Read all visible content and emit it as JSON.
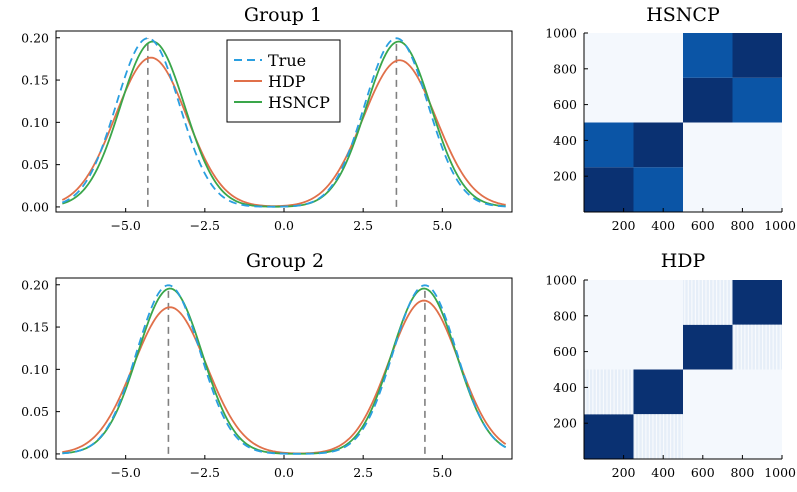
{
  "colors": {
    "true": "#2a9fe0",
    "hdp": "#e0704a",
    "hsncp": "#3aa64a",
    "vline": "#808080",
    "heat_low": "#f4f8fd",
    "heat_mid": "#0b55a6",
    "heat_high": "#0a3172"
  },
  "chart_data": [
    {
      "type": "line",
      "title": "Group 1",
      "xlim": [
        -7.2,
        7.2
      ],
      "ylim": [
        -0.006,
        0.208
      ],
      "xticks": [
        -5,
        -2.5,
        0,
        2.5,
        5
      ],
      "xtick_labels": [
        "−5.0",
        "−2.5",
        "0.0",
        "2.5",
        "5.0"
      ],
      "yticks": [
        0,
        0.05,
        0.1,
        0.15,
        0.2
      ],
      "ytick_labels": [
        "0.00",
        "0.05",
        "0.10",
        "0.15",
        "0.20"
      ],
      "vlines": [
        -4.3,
        3.55
      ],
      "legend": [
        "True",
        "HDP",
        "HSNCP"
      ],
      "legend_position": "top-center",
      "series": [
        {
          "name": "True",
          "style": "dashed",
          "components": [
            {
              "mu": -4.3,
              "sigma": 1.0,
              "w": 0.5
            },
            {
              "mu": 3.55,
              "sigma": 1.0,
              "w": 0.5
            }
          ]
        },
        {
          "name": "HDP",
          "style": "solid",
          "components": [
            {
              "mu": -4.2,
              "sigma": 1.13,
              "w": 0.5
            },
            {
              "mu": 3.65,
              "sigma": 1.15,
              "w": 0.5
            }
          ]
        },
        {
          "name": "HSNCP",
          "style": "solid",
          "components": [
            {
              "mu": -4.15,
              "sigma": 1.02,
              "w": 0.5
            },
            {
              "mu": 3.62,
              "sigma": 1.02,
              "w": 0.5
            }
          ]
        }
      ]
    },
    {
      "type": "line",
      "title": "Group 2",
      "xlim": [
        -7.2,
        7.2
      ],
      "ylim": [
        -0.006,
        0.208
      ],
      "xticks": [
        -5,
        -2.5,
        0,
        2.5,
        5
      ],
      "xtick_labels": [
        "−5.0",
        "−2.5",
        "0.0",
        "2.5",
        "5.0"
      ],
      "yticks": [
        0,
        0.05,
        0.1,
        0.15,
        0.2
      ],
      "ytick_labels": [
        "0.00",
        "0.05",
        "0.10",
        "0.15",
        "0.20"
      ],
      "vlines": [
        -3.65,
        4.45
      ],
      "series": [
        {
          "name": "True",
          "style": "dashed",
          "components": [
            {
              "mu": -3.65,
              "sigma": 1.0,
              "w": 0.5
            },
            {
              "mu": 4.45,
              "sigma": 1.0,
              "w": 0.5
            }
          ]
        },
        {
          "name": "HDP",
          "style": "solid",
          "components": [
            {
              "mu": -3.6,
              "sigma": 1.15,
              "w": 0.5
            },
            {
              "mu": 4.42,
              "sigma": 1.1,
              "w": 0.5
            }
          ]
        },
        {
          "name": "HSNCP",
          "style": "solid",
          "components": [
            {
              "mu": -3.6,
              "sigma": 1.02,
              "w": 0.5
            },
            {
              "mu": 4.42,
              "sigma": 1.02,
              "w": 0.5
            }
          ]
        }
      ]
    },
    {
      "type": "heatmap",
      "title": "HSNCP",
      "xlim": [
        0,
        1000
      ],
      "ylim": [
        0,
        1000
      ],
      "xticks": [
        200,
        400,
        600,
        800,
        1000
      ],
      "yticks": [
        200,
        400,
        600,
        800,
        1000
      ],
      "xtick_labels": [
        "200",
        "400",
        "600",
        "800",
        "1000"
      ],
      "ytick_labels": [
        "200",
        "400",
        "600",
        "800",
        "1000"
      ],
      "blocks": [
        {
          "x": [
            0,
            250
          ],
          "y": [
            0,
            250
          ],
          "level": "high"
        },
        {
          "x": [
            250,
            500
          ],
          "y": [
            0,
            250
          ],
          "level": "mid"
        },
        {
          "x": [
            0,
            250
          ],
          "y": [
            250,
            500
          ],
          "level": "mid"
        },
        {
          "x": [
            250,
            500
          ],
          "y": [
            250,
            500
          ],
          "level": "high"
        },
        {
          "x": [
            500,
            750
          ],
          "y": [
            500,
            750
          ],
          "level": "high"
        },
        {
          "x": [
            750,
            1000
          ],
          "y": [
            500,
            750
          ],
          "level": "mid"
        },
        {
          "x": [
            500,
            750
          ],
          "y": [
            750,
            1000
          ],
          "level": "mid"
        },
        {
          "x": [
            750,
            1000
          ],
          "y": [
            750,
            1000
          ],
          "level": "high"
        }
      ]
    },
    {
      "type": "heatmap",
      "title": "HDP",
      "xlim": [
        0,
        1000
      ],
      "ylim": [
        0,
        1000
      ],
      "xticks": [
        200,
        400,
        600,
        800,
        1000
      ],
      "yticks": [
        200,
        400,
        600,
        800,
        1000
      ],
      "xtick_labels": [
        "200",
        "400",
        "600",
        "800",
        "1000"
      ],
      "ytick_labels": [
        "200",
        "400",
        "600",
        "800",
        "1000"
      ],
      "blocks": [
        {
          "x": [
            0,
            250
          ],
          "y": [
            0,
            250
          ],
          "level": "high"
        },
        {
          "x": [
            250,
            500
          ],
          "y": [
            250,
            500
          ],
          "level": "high"
        },
        {
          "x": [
            500,
            750
          ],
          "y": [
            500,
            750
          ],
          "level": "high"
        },
        {
          "x": [
            750,
            1000
          ],
          "y": [
            750,
            1000
          ],
          "level": "high"
        },
        {
          "x": [
            250,
            500
          ],
          "y": [
            0,
            250
          ],
          "level": "faint"
        },
        {
          "x": [
            0,
            250
          ],
          "y": [
            250,
            500
          ],
          "level": "faint"
        },
        {
          "x": [
            750,
            1000
          ],
          "y": [
            500,
            750
          ],
          "level": "faint"
        },
        {
          "x": [
            500,
            750
          ],
          "y": [
            750,
            1000
          ],
          "level": "faint"
        }
      ]
    }
  ]
}
